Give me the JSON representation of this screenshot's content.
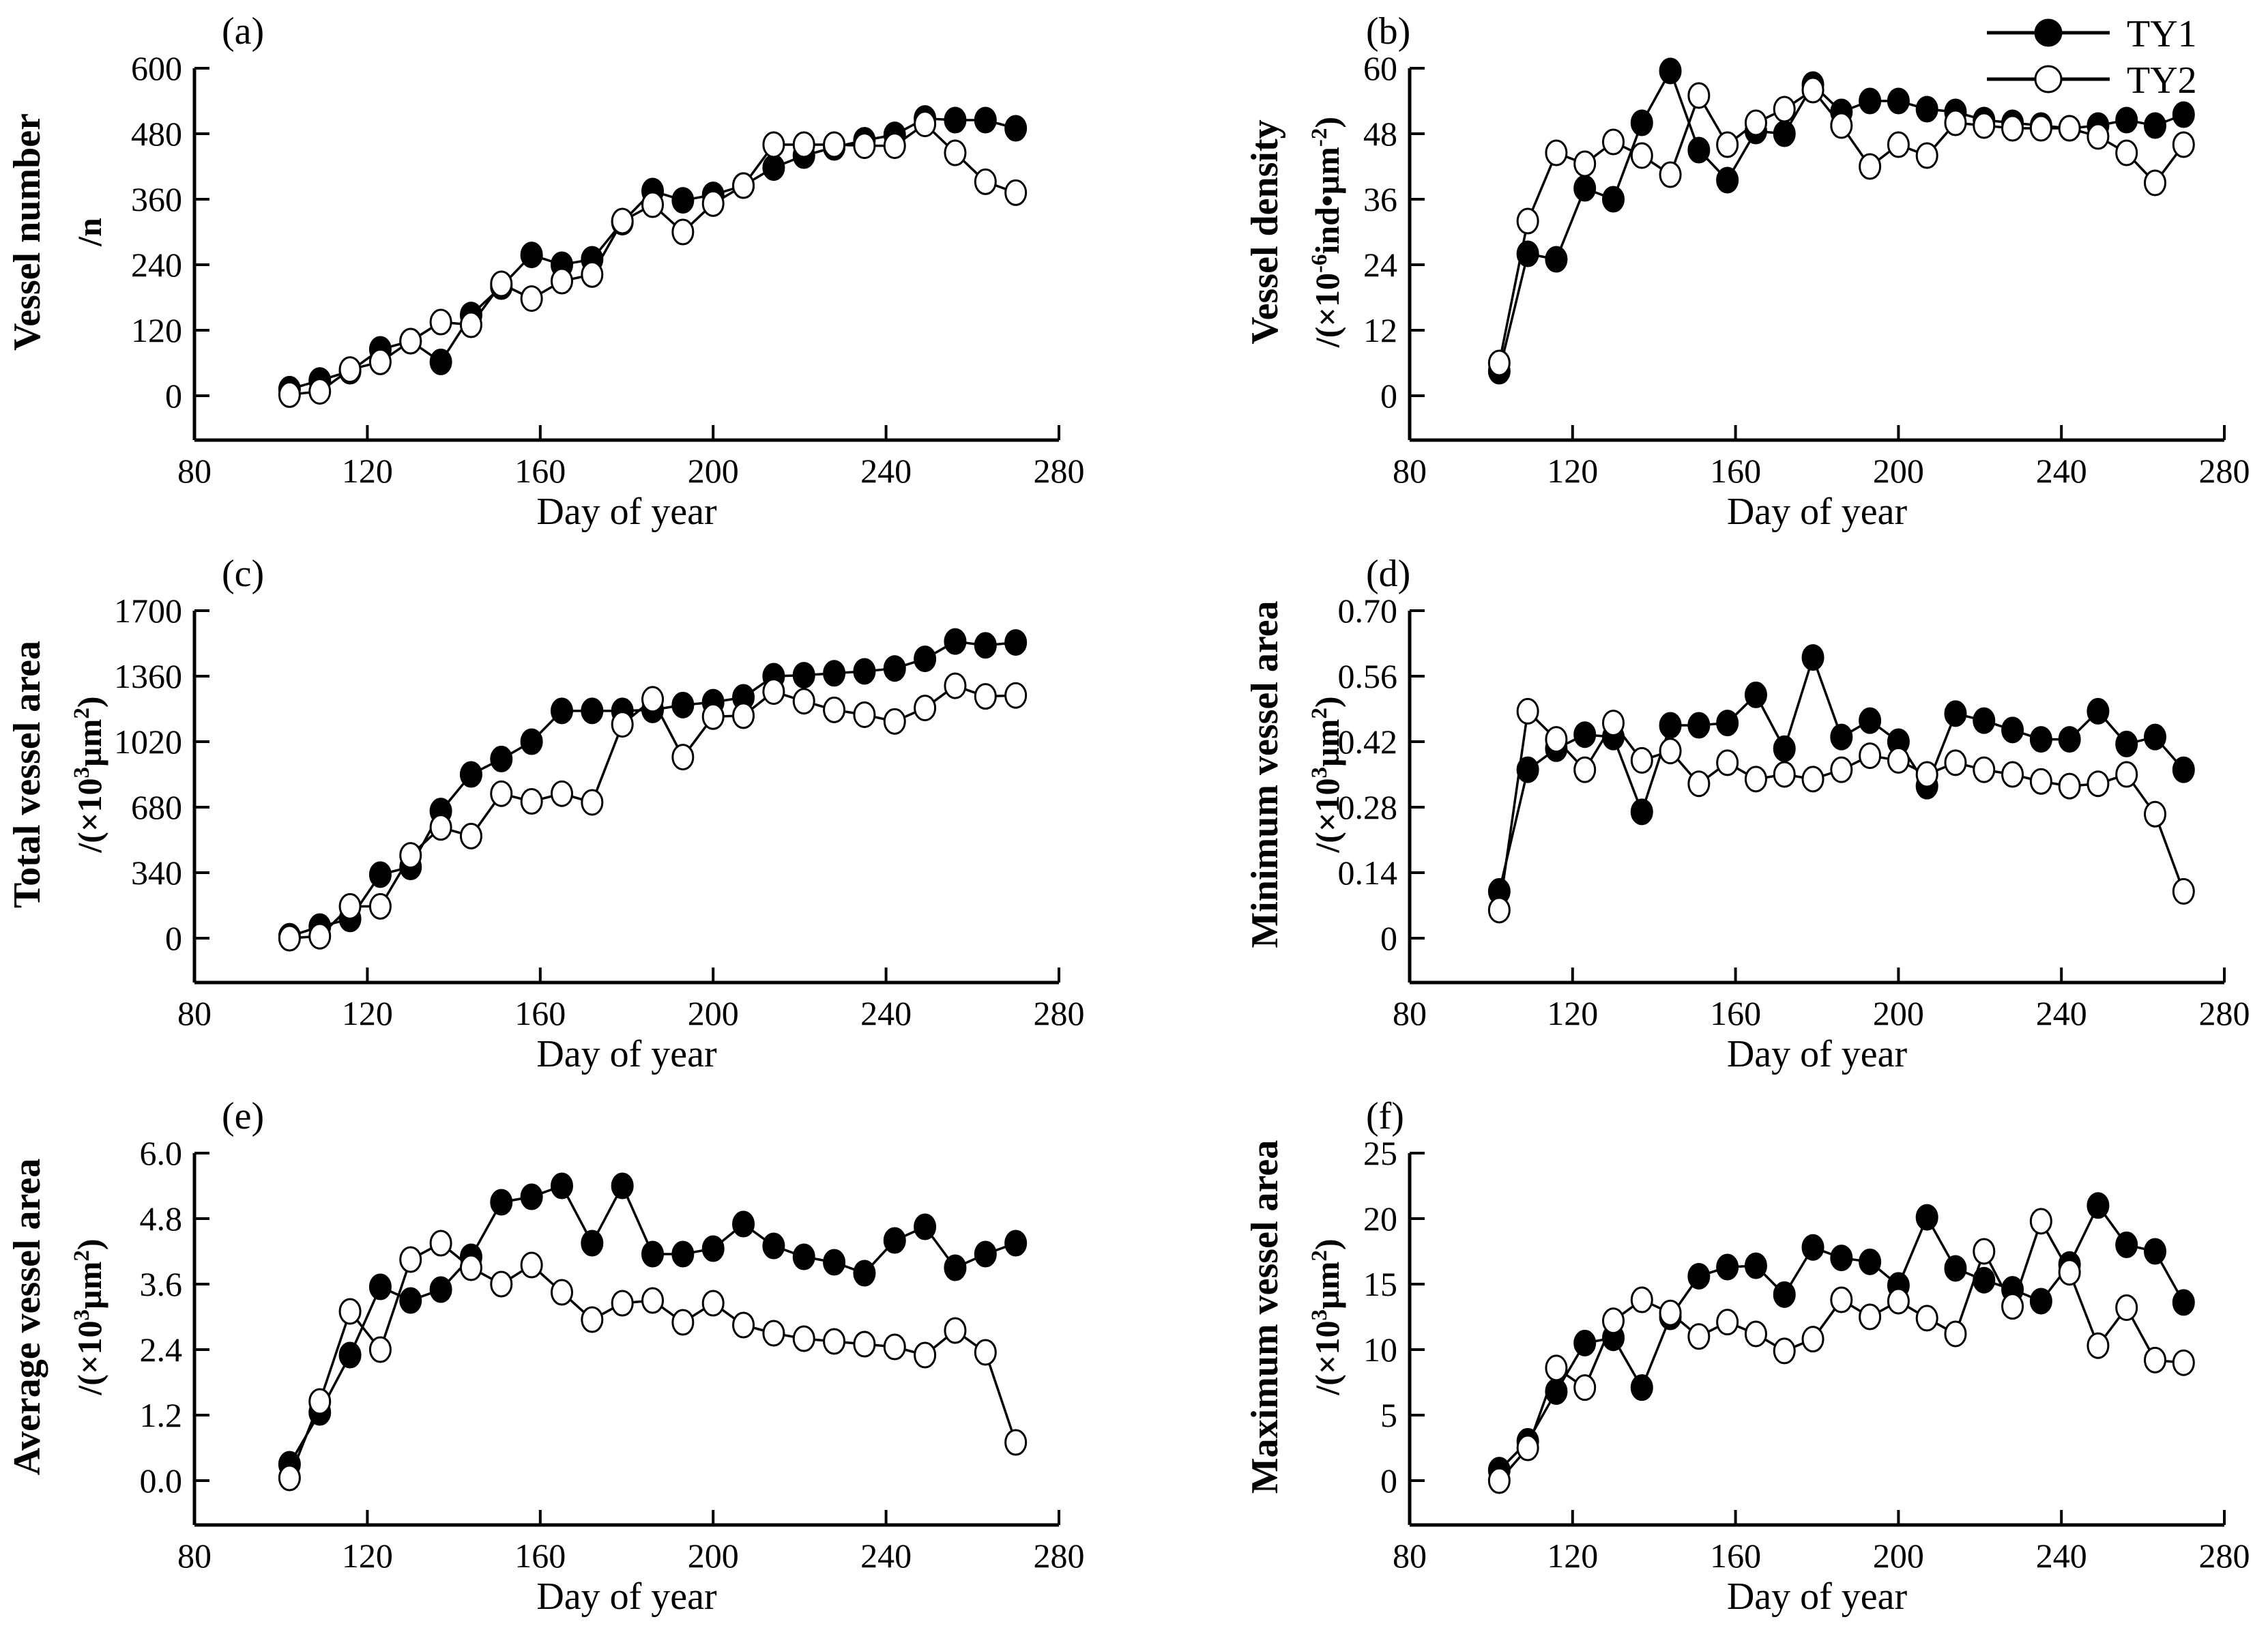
{
  "figure": {
    "background": "#ffffff",
    "ink": "#000000"
  },
  "legend": {
    "position": "top-right-panel-b",
    "entries": [
      {
        "label": "TY1",
        "marker": "filled-circle"
      },
      {
        "label": "TY2",
        "marker": "open-circle"
      }
    ]
  },
  "xlabel_shared": "Day of year",
  "xtick_labels": [
    "80",
    "120",
    "160",
    "200",
    "240",
    "280"
  ],
  "days": [
    102,
    109,
    116,
    123,
    130,
    137,
    144,
    151,
    158,
    165,
    172,
    179,
    186,
    193,
    200,
    207,
    214,
    221,
    228,
    235,
    242,
    249,
    256,
    263,
    270
  ],
  "chart_data": [
    {
      "id": "a",
      "letter": "(a)",
      "type": "line",
      "ylabel_name": "Vessel number",
      "ylabel_units": [
        {
          "t": "/n"
        }
      ],
      "xlabel": "Day of year",
      "xlim": [
        80,
        280
      ],
      "ylim": [
        0,
        600
      ],
      "yticks": [
        "0",
        "120",
        "240",
        "360",
        "480",
        "600"
      ],
      "has_legend": false,
      "series": [
        {
          "name": "TY1",
          "marker": "filled-circle",
          "values": [
            12,
            28,
            45,
            85,
            100,
            62,
            148,
            200,
            258,
            240,
            250,
            318,
            375,
            358,
            368,
            385,
            418,
            440,
            455,
            468,
            478,
            508,
            505,
            505,
            490
          ]
        },
        {
          "name": "TY2",
          "marker": "open-circle",
          "values": [
            2,
            8,
            48,
            62,
            100,
            135,
            130,
            205,
            178,
            210,
            222,
            320,
            350,
            300,
            352,
            385,
            460,
            460,
            460,
            458,
            458,
            498,
            445,
            392,
            372
          ]
        }
      ]
    },
    {
      "id": "b",
      "letter": "(b)",
      "type": "line",
      "ylabel_name": "Vessel density",
      "ylabel_units": [
        {
          "t": "/(×10"
        },
        {
          "t": "-6",
          "sup": true
        },
        {
          "t": "ind•µm"
        },
        {
          "t": "-2",
          "sup": true
        },
        {
          "t": ")"
        }
      ],
      "xlabel": "Day of year",
      "xlim": [
        80,
        280
      ],
      "ylim": [
        0,
        60
      ],
      "yticks": [
        "0",
        "12",
        "24",
        "36",
        "48",
        "60"
      ],
      "has_legend": true,
      "series": [
        {
          "name": "TY1",
          "marker": "filled-circle",
          "values": [
            4.5,
            26,
            25,
            38,
            36,
            50,
            59.5,
            45,
            39.5,
            48.5,
            48,
            57,
            52,
            54,
            54,
            52.5,
            52,
            50.5,
            50,
            49.5,
            49,
            49.5,
            50.5,
            49.5,
            51.5
          ]
        },
        {
          "name": "TY2",
          "marker": "open-circle",
          "values": [
            6,
            32,
            44.5,
            42.5,
            46.5,
            44,
            40.5,
            55,
            46,
            50,
            52.5,
            56,
            49.5,
            42,
            46,
            44,
            50,
            49.5,
            49,
            49,
            49,
            47.5,
            44.5,
            39,
            46
          ]
        }
      ]
    },
    {
      "id": "c",
      "letter": "(c)",
      "type": "line",
      "ylabel_name": "Total vessel area",
      "ylabel_units": [
        {
          "t": "/(×10"
        },
        {
          "t": "3",
          "sup": true
        },
        {
          "t": "µm"
        },
        {
          "t": "2",
          "sup": true
        },
        {
          "t": ")"
        }
      ],
      "xlabel": "Day of year",
      "xlim": [
        80,
        280
      ],
      "ylim": [
        0,
        1700
      ],
      "yticks": [
        "0",
        "340",
        "680",
        "1020",
        "1360",
        "1700"
      ],
      "has_legend": false,
      "series": [
        {
          "name": "TY1",
          "marker": "filled-circle",
          "values": [
            10,
            60,
            100,
            330,
            370,
            660,
            850,
            930,
            1020,
            1180,
            1180,
            1180,
            1185,
            1210,
            1225,
            1250,
            1360,
            1365,
            1375,
            1385,
            1400,
            1450,
            1540,
            1520,
            1535
          ]
        },
        {
          "name": "TY2",
          "marker": "open-circle",
          "values": [
            0,
            10,
            165,
            165,
            430,
            575,
            530,
            750,
            710,
            750,
            705,
            1110,
            1240,
            940,
            1150,
            1155,
            1280,
            1230,
            1185,
            1160,
            1125,
            1195,
            1310,
            1255,
            1260
          ]
        }
      ]
    },
    {
      "id": "d",
      "letter": "(d)",
      "type": "line",
      "ylabel_name": "Minimum vessel area",
      "ylabel_units": [
        {
          "t": "/(×10"
        },
        {
          "t": "3",
          "sup": true
        },
        {
          "t": "µm"
        },
        {
          "t": "2",
          "sup": true
        },
        {
          "t": ")"
        }
      ],
      "xlabel": "Day of year",
      "xlim": [
        80,
        280
      ],
      "ylim": [
        0,
        0.7
      ],
      "yticks": [
        "0",
        "0.14",
        "0.28",
        "0.42",
        "0.56",
        "0.70"
      ],
      "has_legend": false,
      "series": [
        {
          "name": "TY1",
          "marker": "filled-circle",
          "values": [
            0.1,
            0.36,
            0.405,
            0.435,
            0.43,
            0.27,
            0.455,
            0.455,
            0.46,
            0.52,
            0.405,
            0.6,
            0.43,
            0.465,
            0.42,
            0.325,
            0.48,
            0.465,
            0.445,
            0.425,
            0.425,
            0.485,
            0.415,
            0.43,
            0.36
          ]
        },
        {
          "name": "TY2",
          "marker": "open-circle",
          "values": [
            0.06,
            0.485,
            0.425,
            0.36,
            0.46,
            0.38,
            0.4,
            0.33,
            0.375,
            0.34,
            0.35,
            0.34,
            0.36,
            0.39,
            0.38,
            0.35,
            0.375,
            0.36,
            0.35,
            0.335,
            0.325,
            0.33,
            0.35,
            0.265,
            0.1
          ]
        }
      ]
    },
    {
      "id": "e",
      "letter": "(e)",
      "type": "line",
      "ylabel_name": "Average vessel area",
      "ylabel_units": [
        {
          "t": "/(×10"
        },
        {
          "t": "3",
          "sup": true
        },
        {
          "t": "µm"
        },
        {
          "t": "2",
          "sup": true
        },
        {
          "t": ")"
        }
      ],
      "xlabel": "Day of year",
      "xlim": [
        80,
        280
      ],
      "ylim": [
        0,
        6.0
      ],
      "yticks": [
        "0.0",
        "1.2",
        "2.4",
        "3.6",
        "4.8",
        "6.0"
      ],
      "has_legend": false,
      "series": [
        {
          "name": "TY1",
          "marker": "filled-circle",
          "values": [
            0.3,
            1.25,
            2.3,
            3.55,
            3.3,
            3.5,
            4.1,
            5.1,
            5.2,
            5.4,
            4.35,
            5.4,
            4.15,
            4.15,
            4.25,
            4.7,
            4.3,
            4.1,
            4.0,
            3.8,
            4.4,
            4.65,
            3.9,
            4.15,
            4.35
          ]
        },
        {
          "name": "TY2",
          "marker": "open-circle",
          "values": [
            0.05,
            1.45,
            3.1,
            2.4,
            4.05,
            4.35,
            3.9,
            3.6,
            3.95,
            3.45,
            2.95,
            3.25,
            3.3,
            2.9,
            3.25,
            2.85,
            2.7,
            2.6,
            2.55,
            2.5,
            2.45,
            2.3,
            2.75,
            2.35,
            0.7
          ]
        }
      ]
    },
    {
      "id": "f",
      "letter": "(f)",
      "type": "line",
      "ylabel_name": "Maximum vessel area",
      "ylabel_units": [
        {
          "t": "/(×10"
        },
        {
          "t": "3",
          "sup": true
        },
        {
          "t": "µm"
        },
        {
          "t": "2",
          "sup": true
        },
        {
          "t": ")"
        }
      ],
      "xlabel": "Day of year",
      "xlim": [
        80,
        280
      ],
      "ylim": [
        0,
        25
      ],
      "yticks": [
        "0",
        "5",
        "10",
        "15",
        "20",
        "25"
      ],
      "has_legend": false,
      "series": [
        {
          "name": "TY1",
          "marker": "filled-circle",
          "values": [
            0.8,
            3.0,
            6.8,
            10.5,
            10.9,
            7.1,
            12.5,
            15.6,
            16.3,
            16.4,
            14.2,
            17.8,
            17.0,
            16.7,
            14.9,
            20.1,
            16.2,
            15.3,
            14.6,
            13.7,
            16.5,
            21.0,
            18.0,
            17.5,
            13.6
          ]
        },
        {
          "name": "TY2",
          "marker": "open-circle",
          "values": [
            0.0,
            2.5,
            8.6,
            7.1,
            12.2,
            13.8,
            12.8,
            11.0,
            12.1,
            11.2,
            9.9,
            10.8,
            13.8,
            12.5,
            13.7,
            12.4,
            11.2,
            17.5,
            13.3,
            19.8,
            15.9,
            10.3,
            13.2,
            9.2,
            9.0
          ]
        }
      ]
    }
  ]
}
